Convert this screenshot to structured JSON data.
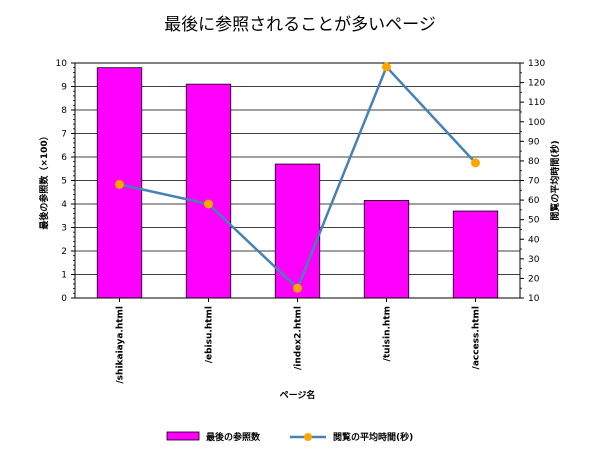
{
  "chart_data": {
    "type": "bar",
    "title": "最後に参照されることが多いページ",
    "xlabel": "ページ名",
    "categories": [
      "/shikaiaya.html",
      "/ebisu.html",
      "/index2.html",
      "/tuisin.htm",
      "/access.html"
    ],
    "series": [
      {
        "name": "最後の参照数",
        "type": "bar",
        "axis": "left",
        "values": [
          9.8,
          9.1,
          5.7,
          4.15,
          3.7
        ],
        "color": "#ff00ff"
      },
      {
        "name": "閲覧の平均時間(秒)",
        "type": "line",
        "axis": "right",
        "values": [
          68,
          58,
          15,
          128,
          79
        ],
        "line_color": "#4682b4",
        "marker_color": "#ffa500"
      }
    ],
    "y_left": {
      "label": "最後の参照数（×100）",
      "min": 0,
      "max": 10,
      "ticks": [
        0,
        1,
        2,
        3,
        4,
        5,
        6,
        7,
        8,
        9,
        10
      ]
    },
    "y_right": {
      "label": "閲覧の平均時間(秒)",
      "min": 10,
      "max": 130,
      "ticks": [
        10,
        20,
        30,
        40,
        50,
        60,
        70,
        80,
        90,
        100,
        110,
        120,
        130
      ]
    },
    "grid": true,
    "legend_position": "bottom"
  }
}
